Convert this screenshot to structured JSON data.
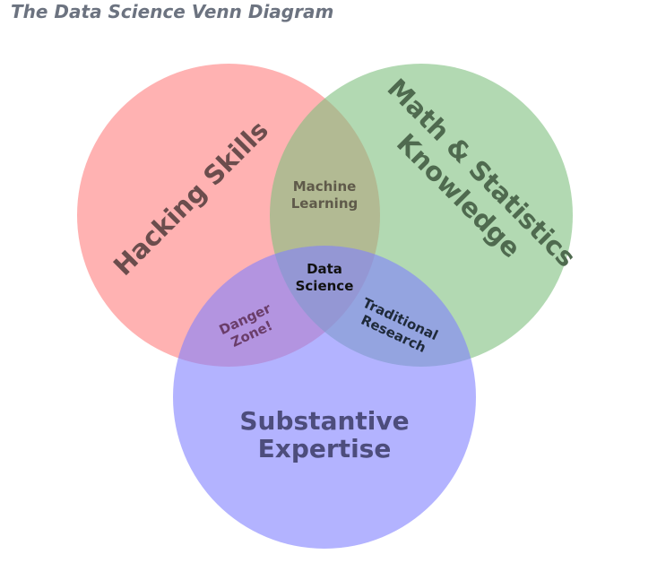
{
  "title": "The Data Science Venn Diagram",
  "colors": {
    "hacking": "#ff7f7f",
    "math": "#7fbf7f",
    "substantive": "#8080ff",
    "title": "#6c7380"
  },
  "sets": {
    "hacking": "Hacking Skills",
    "math": {
      "line1": "Math & Statistics",
      "line2": "Knowledge"
    },
    "substantive": {
      "line1": "Substantive",
      "line2": "Expertise"
    }
  },
  "intersections": {
    "machine_learning": {
      "line1": "Machine",
      "line2": "Learning"
    },
    "danger_zone": {
      "line1": "Danger",
      "line2": "Zone!"
    },
    "traditional_research": {
      "line1": "Traditional",
      "line2": "Research"
    },
    "data_science": {
      "line1": "Data",
      "line2": "Science"
    }
  }
}
